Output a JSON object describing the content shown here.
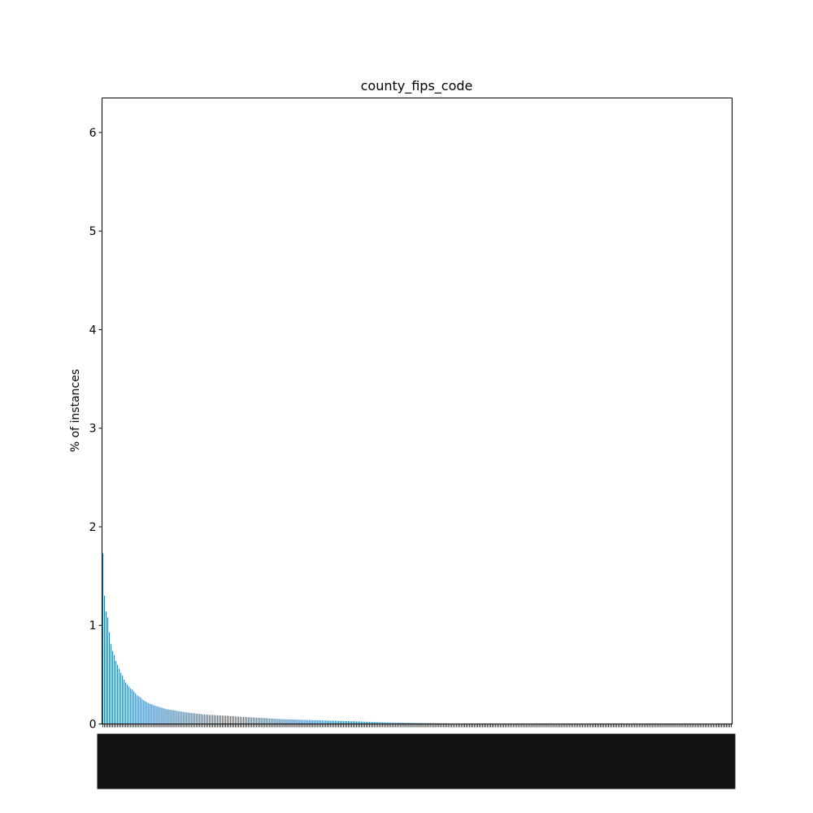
{
  "chart_data": {
    "type": "bar",
    "title": "county_fips_code",
    "xlabel": "",
    "ylabel": "% of instances",
    "ylim": [
      0,
      6.35
    ],
    "yticks": [
      0,
      1,
      2,
      3,
      4,
      5,
      6
    ],
    "grid": false,
    "legend": "none",
    "bar_color": "#1f77b4",
    "bar_count": 387,
    "values": [
      1.73,
      1.3,
      1.14,
      1.08,
      0.93,
      0.81,
      0.74,
      0.7,
      0.64,
      0.6,
      0.56,
      0.52,
      0.49,
      0.45,
      0.42,
      0.4,
      0.38,
      0.36,
      0.35,
      0.33,
      0.31,
      0.29,
      0.28,
      0.27,
      0.25,
      0.24,
      0.23,
      0.22,
      0.21,
      0.205,
      0.2,
      0.19,
      0.185,
      0.18,
      0.175,
      0.17,
      0.165,
      0.16,
      0.155,
      0.15,
      0.148,
      0.145,
      0.142,
      0.14,
      0.137,
      0.134,
      0.131,
      0.128,
      0.125,
      0.122,
      0.12,
      0.118,
      0.116,
      0.114,
      0.112,
      0.11,
      0.108,
      0.106,
      0.104,
      0.102,
      0.1,
      0.098,
      0.096,
      0.095,
      0.094,
      0.093,
      0.092,
      0.091,
      0.09,
      0.089,
      0.088,
      0.087,
      0.086,
      0.085,
      0.084,
      0.083,
      0.082,
      0.081,
      0.08,
      0.079,
      0.078,
      0.077,
      0.076,
      0.075,
      0.074,
      0.073,
      0.072,
      0.071,
      0.07,
      0.069,
      0.068,
      0.067,
      0.066,
      0.065,
      0.064,
      0.063,
      0.062,
      0.061,
      0.06,
      0.059,
      0.058,
      0.057,
      0.056,
      0.055,
      0.054,
      0.053,
      0.052,
      0.051,
      0.05,
      0.049,
      0.048,
      0.048,
      0.047,
      0.047,
      0.046,
      0.046,
      0.045,
      0.045,
      0.044,
      0.044,
      0.043,
      0.043,
      0.042,
      0.042,
      0.041,
      0.041,
      0.04,
      0.04,
      0.039,
      0.039,
      0.038,
      0.038,
      0.037,
      0.037,
      0.036,
      0.036,
      0.035,
      0.035,
      0.034,
      0.034,
      0.033,
      0.033,
      0.032,
      0.032,
      0.031,
      0.031,
      0.03,
      0.03,
      0.029,
      0.029,
      0.028,
      0.028,
      0.027,
      0.027,
      0.026,
      0.026,
      0.025,
      0.025,
      0.024,
      0.024,
      0.023,
      0.023,
      0.022,
      0.022,
      0.021,
      0.021,
      0.02,
      0.02,
      0.019,
      0.019,
      0.018,
      0.018,
      0.017,
      0.017,
      0.016,
      0.016,
      0.015,
      0.015,
      0.015,
      0.014,
      0.014,
      0.014,
      0.013,
      0.013,
      0.013,
      0.012,
      0.012,
      0.012,
      0.011,
      0.011,
      0.011,
      0.01,
      0.01,
      0.01,
      0.01,
      0.009,
      0.009,
      0.009,
      0.009,
      0.008,
      0.008,
      0.008,
      0.008,
      0.007,
      0.007,
      0.007,
      0.007,
      0.007,
      0.006,
      0.006,
      0.006,
      0.006,
      0.006,
      0.005,
      0.005,
      0.005,
      0.005,
      0.005,
      0.005,
      0.004,
      0.004,
      0.004,
      0.004,
      0.004,
      0.004,
      0.004,
      0.004,
      0.004,
      0.004,
      0.004,
      0.004,
      0.004,
      0.004,
      0.004,
      0.004,
      0.004,
      0.004,
      0.004,
      0.004,
      0.004,
      0.004,
      0.004,
      0.004,
      0.004,
      0.004,
      0.004,
      0.004,
      0.004,
      0.004,
      0.004,
      0.004,
      0.004,
      0.004,
      0.004,
      0.004,
      0.004,
      0.004,
      0.004,
      0.004,
      0.004,
      0.004,
      0.004,
      0.004,
      0.004,
      0.004,
      0.004,
      0.004,
      0.004,
      0.004,
      0.004,
      0.004,
      0.004,
      0.004,
      0.004,
      0.004,
      0.004,
      0.004,
      0.004,
      0.004,
      0.004,
      0.004,
      0.004,
      0.004,
      0.004,
      0.004,
      0.004,
      0.004,
      0.004,
      0.004,
      0.004,
      0.004,
      0.004,
      0.004,
      0.004,
      0.004,
      0.004,
      0.004,
      0.004,
      0.004,
      0.004,
      0.004,
      0.004,
      0.004,
      0.004,
      0.004,
      0.004,
      0.004,
      0.004,
      0.004,
      0.004,
      0.004,
      0.004,
      0.004,
      0.004,
      0.004,
      0.004,
      0.004,
      0.004,
      0.004,
      0.004,
      0.004,
      0.004,
      0.004,
      0.004,
      0.004,
      0.004,
      0.004,
      0.004,
      0.004,
      0.004,
      0.004,
      0.004,
      0.004,
      0.004,
      0.004,
      0.004,
      0.004,
      0.004,
      0.004,
      0.004,
      0.004,
      0.004,
      0.004,
      0.004,
      0.004,
      0.004,
      0.004,
      0.004,
      0.004,
      0.004,
      0.004,
      0.004,
      0.004,
      0.004,
      0.004,
      0.004,
      0.004,
      0.004,
      0.004,
      0.004,
      0.004,
      0.004,
      0.004,
      0.004,
      0.004,
      0.004,
      0.004,
      0.004,
      0.004,
      0.004,
      0.004,
      0.004,
      0.004,
      0.004,
      0.004,
      0.004,
      0.004,
      0.004,
      0.004,
      0.004,
      0.004,
      0.004,
      0.004,
      0.004,
      0.004
    ]
  }
}
